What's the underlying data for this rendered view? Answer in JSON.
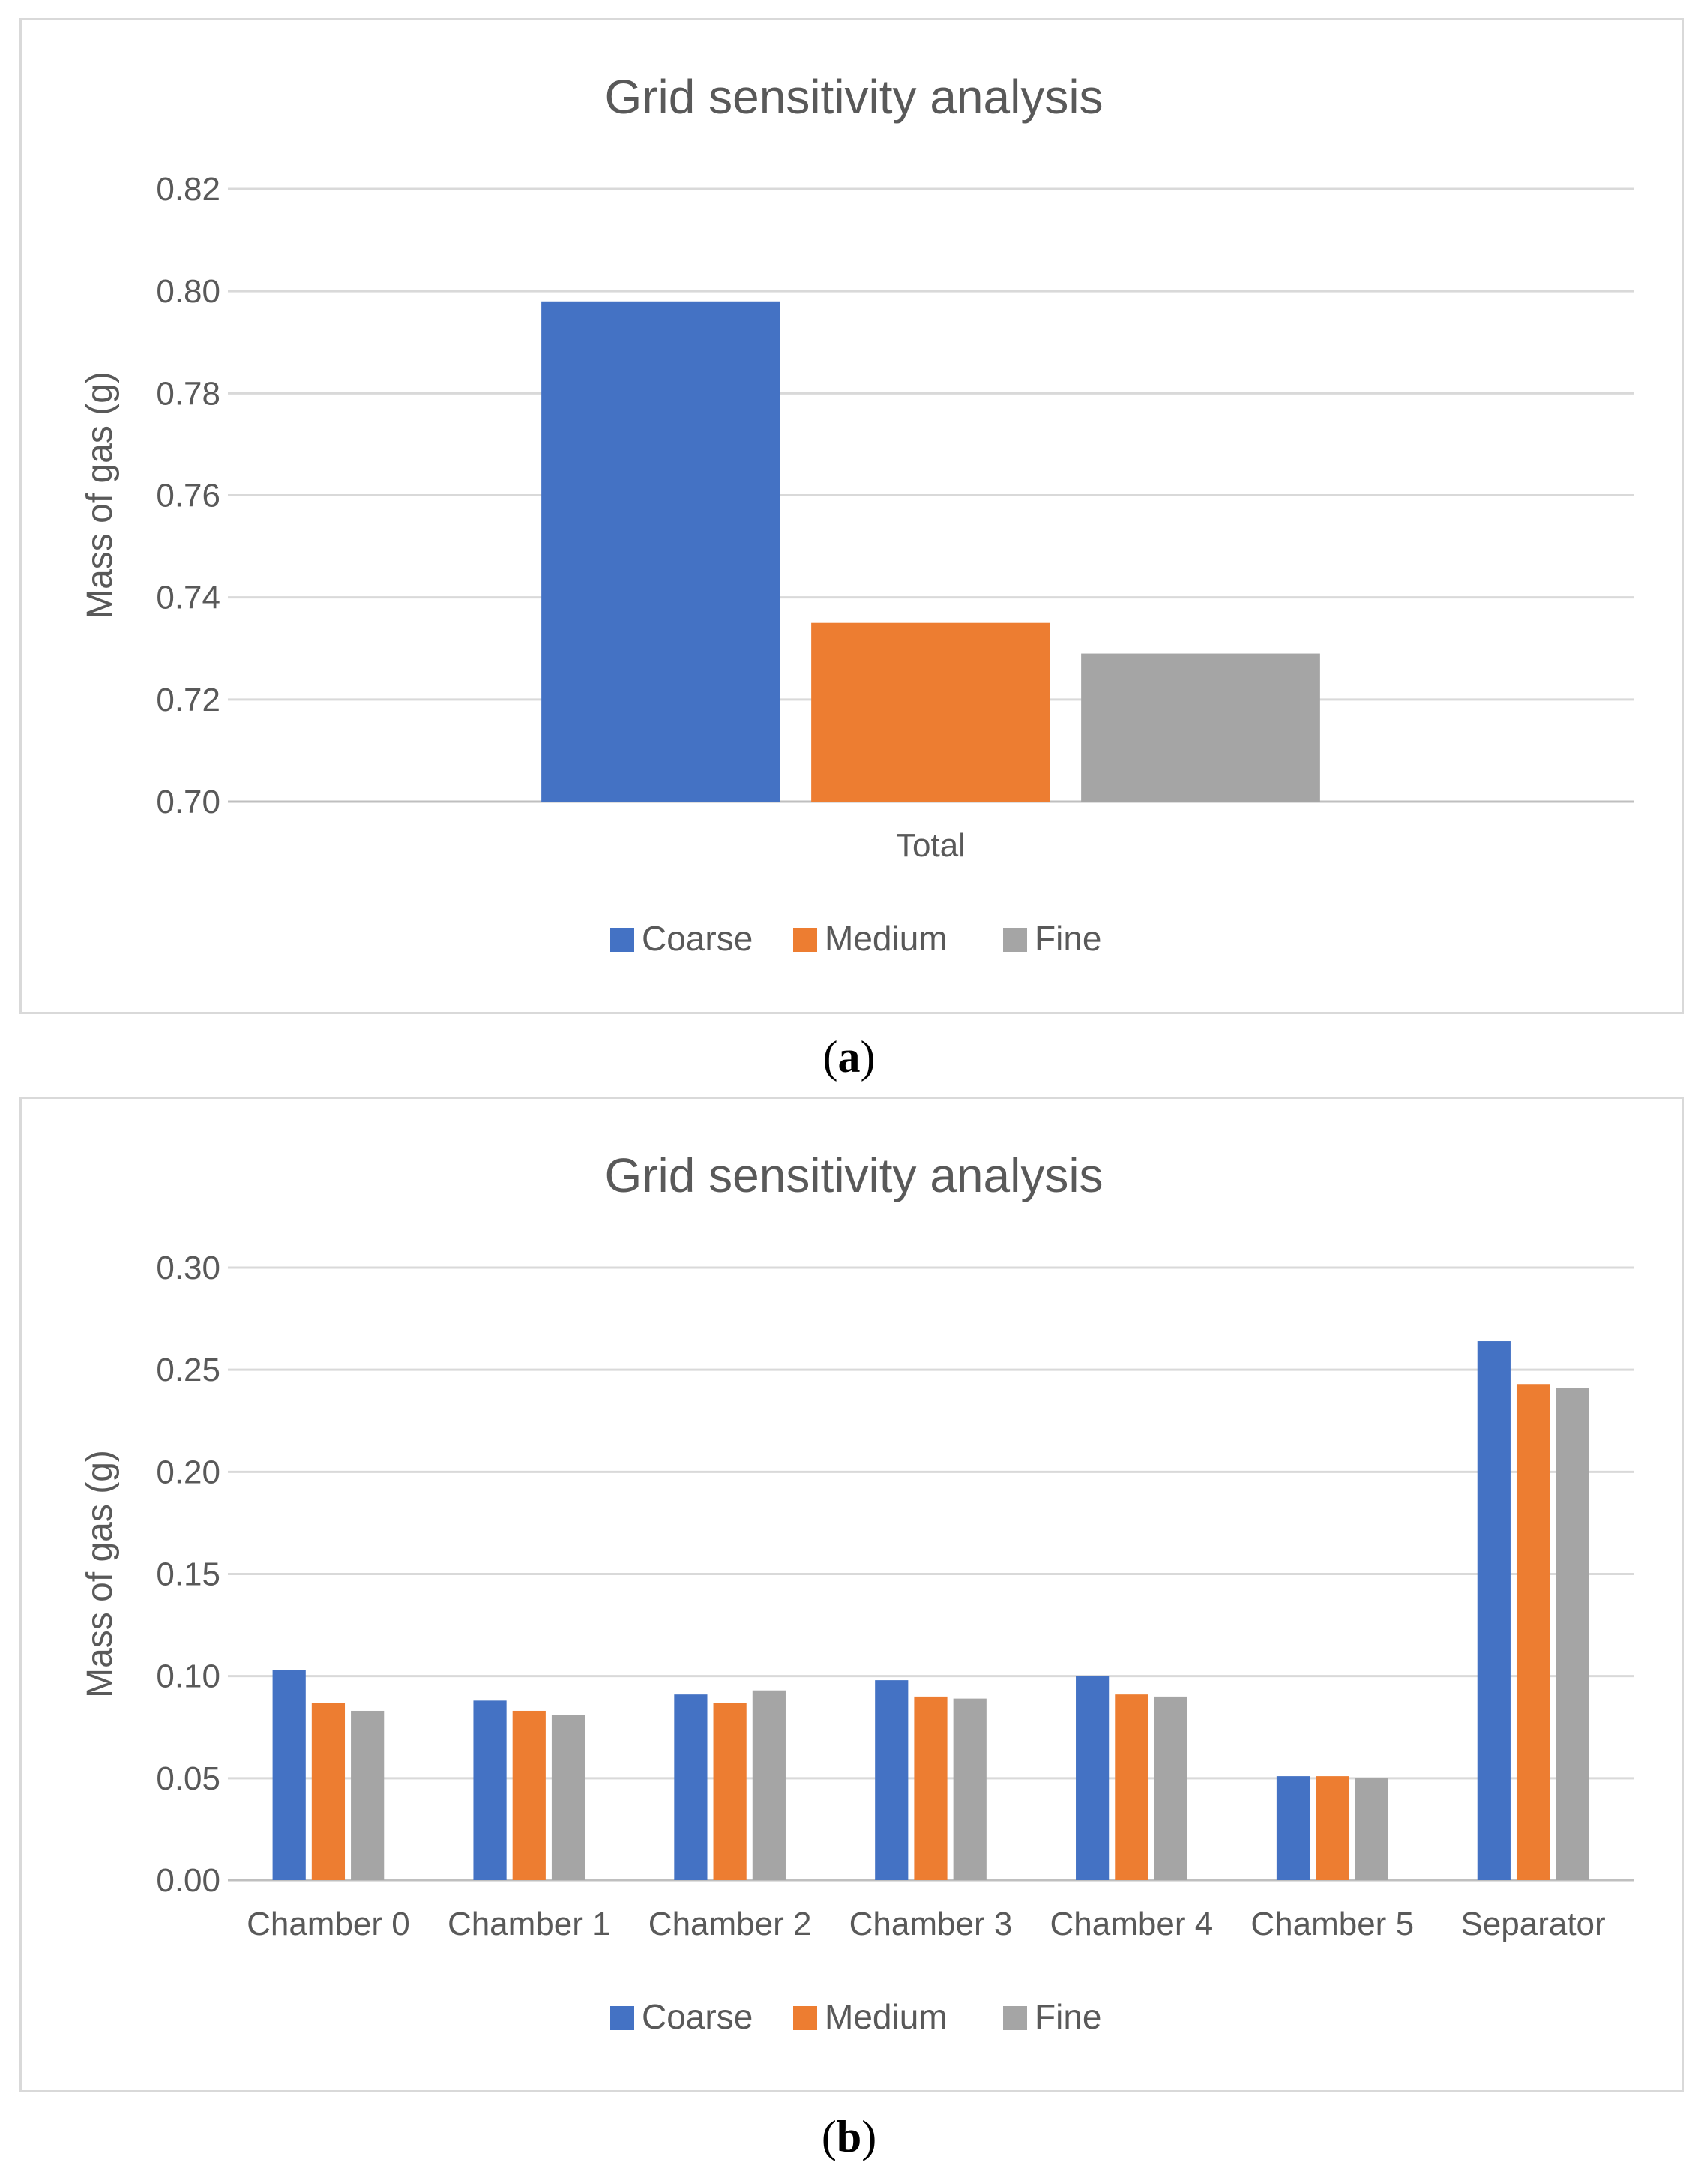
{
  "chart_data": [
    {
      "type": "bar",
      "panel": "a",
      "caption_letter": "a",
      "title": "Grid sensitivity analysis",
      "xlabel": "",
      "ylabel": "Mass of gas (g)",
      "ylim": [
        0.7,
        0.82
      ],
      "ytick_step": 0.02,
      "ytick_labels": [
        "0.70",
        "0.72",
        "0.74",
        "0.76",
        "0.78",
        "0.80",
        "0.82"
      ],
      "categories": [
        "Total"
      ],
      "series": [
        {
          "name": "Coarse",
          "color": "#4472c4",
          "values": [
            0.798
          ]
        },
        {
          "name": "Medium",
          "color": "#ed7d31",
          "values": [
            0.735
          ]
        },
        {
          "name": "Fine",
          "color": "#a5a5a5",
          "values": [
            0.729
          ]
        }
      ],
      "legend": "bottom",
      "grid": true
    },
    {
      "type": "bar",
      "panel": "b",
      "caption_letter": "b",
      "title": "Grid sensitivity analysis",
      "xlabel": "",
      "ylabel": "Mass of gas (g)",
      "ylim": [
        0.0,
        0.3
      ],
      "ytick_step": 0.05,
      "ytick_labels": [
        "0.00",
        "0.05",
        "0.10",
        "0.15",
        "0.20",
        "0.25",
        "0.30"
      ],
      "categories": [
        "Chamber 0",
        "Chamber 1",
        "Chamber 2",
        "Chamber 3",
        "Chamber 4",
        "Chamber 5",
        "Separator"
      ],
      "series": [
        {
          "name": "Coarse",
          "color": "#4472c4",
          "values": [
            0.103,
            0.088,
            0.091,
            0.098,
            0.1,
            0.051,
            0.264
          ]
        },
        {
          "name": "Medium",
          "color": "#ed7d31",
          "values": [
            0.087,
            0.083,
            0.087,
            0.09,
            0.091,
            0.051,
            0.243
          ]
        },
        {
          "name": "Fine",
          "color": "#a5a5a5",
          "values": [
            0.083,
            0.081,
            0.093,
            0.089,
            0.09,
            0.05,
            0.241
          ]
        }
      ],
      "legend": "bottom",
      "grid": true
    }
  ]
}
